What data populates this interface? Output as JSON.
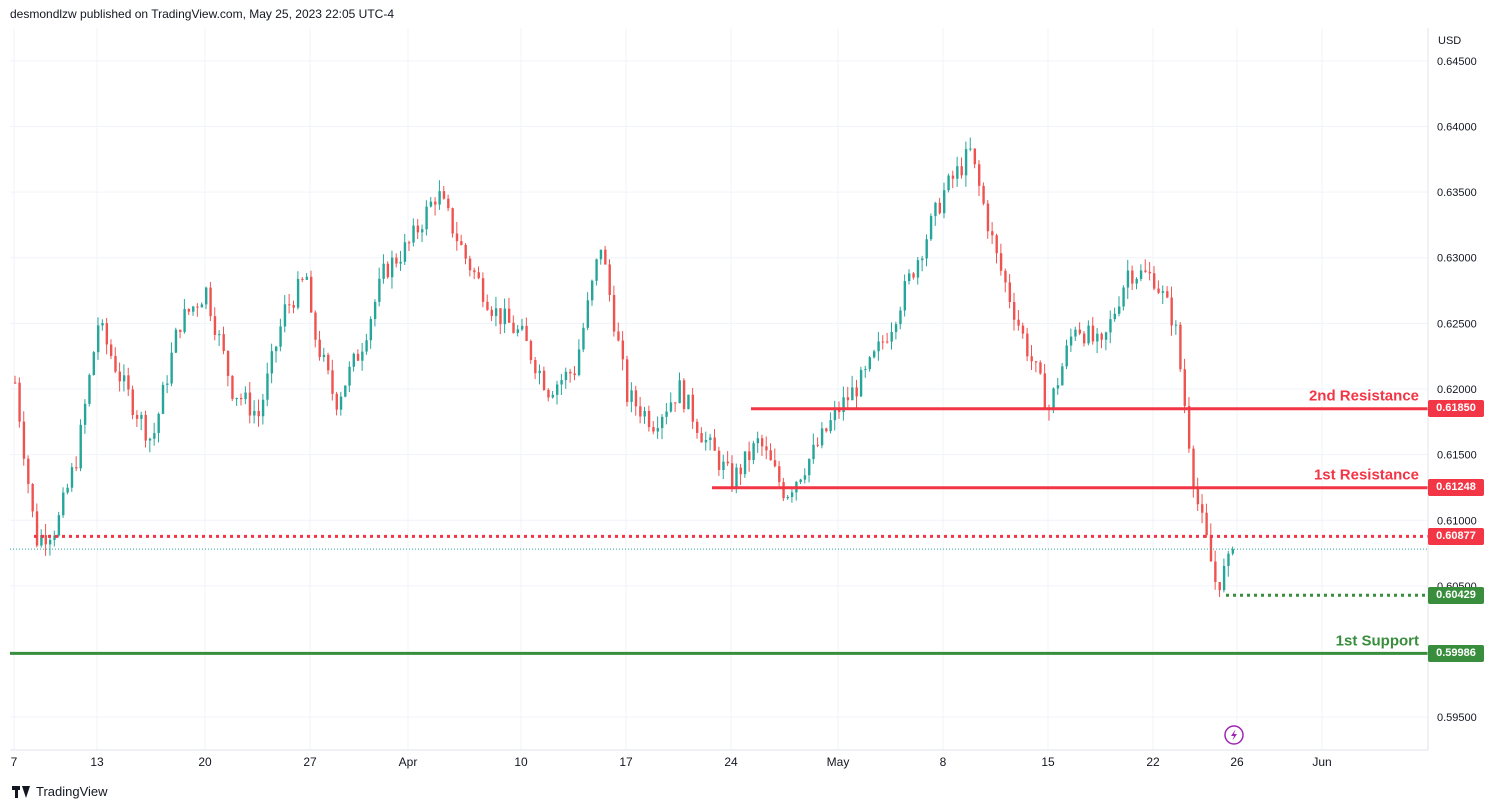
{
  "header": {
    "publisher_line": "desmondlzw published on TradingView.com, May 25, 2023 22:05 UTC-4"
  },
  "footer": {
    "brand": "TradingView",
    "logo_icon": "tradingview-logo-icon"
  },
  "colors": {
    "up": "#26a69a",
    "down": "#ef5350",
    "resistance": "#f23645",
    "support": "#388e3c",
    "grid": "#f0f3fa",
    "axis_text": "#131722"
  },
  "chart_data": {
    "type": "candlestick",
    "currency": "USD",
    "ylim": [
      0.5925,
      0.6475
    ],
    "y_ticks": [
      "0.64500",
      "0.64000",
      "0.63500",
      "0.63000",
      "0.62500",
      "0.62000",
      "0.61500",
      "0.61000",
      "0.60500",
      "0.59500"
    ],
    "x_ticks": [
      "7",
      "13",
      "20",
      "27",
      "Apr",
      "10",
      "17",
      "24",
      "May",
      "8",
      "15",
      "22",
      "26",
      "Jun"
    ],
    "levels": [
      {
        "label": "2nd Resistance",
        "value": 0.6185,
        "tag": "0.61850",
        "kind": "resistance"
      },
      {
        "label": "1st Resistance",
        "value": 0.61248,
        "tag": "0.61248",
        "kind": "resistance"
      },
      {
        "label": "1st Support",
        "value": 0.59986,
        "tag": "0.59986",
        "kind": "support"
      }
    ],
    "dotted_levels": [
      {
        "value": 0.60877,
        "tag": "0.60877",
        "kind": "resistance"
      },
      {
        "value": 0.60429,
        "tag": "0.60429",
        "kind": "support"
      }
    ],
    "current_price": 0.6078,
    "series": [
      {
        "start": "Mar 7",
        "end": "Mar 13",
        "anchors": [
          0.6205,
          0.6085,
          0.6095,
          0.615,
          0.625
        ]
      },
      {
        "start": "Mar 13",
        "end": "Mar 20",
        "anchors": [
          0.625,
          0.62,
          0.616,
          0.625,
          0.6275
        ]
      },
      {
        "start": "Mar 20",
        "end": "Mar 27",
        "anchors": [
          0.6275,
          0.62,
          0.618,
          0.626,
          0.629
        ]
      },
      {
        "start": "Mar 27",
        "end": "Apr 3",
        "anchors": [
          0.625,
          0.619,
          0.623,
          0.629,
          0.631
        ]
      },
      {
        "start": "Apr 3",
        "end": "Apr 10",
        "anchors": [
          0.631,
          0.635,
          0.63,
          0.626,
          0.624
        ]
      },
      {
        "start": "Apr 10",
        "end": "Apr 17",
        "anchors": [
          0.624,
          0.62,
          0.6215,
          0.631,
          0.6195
        ]
      },
      {
        "start": "Apr 17",
        "end": "Apr 24",
        "anchors": [
          0.6195,
          0.6175,
          0.62,
          0.616,
          0.613
        ]
      },
      {
        "start": "Apr 24",
        "end": "May 1",
        "anchors": [
          0.613,
          0.616,
          0.612,
          0.615,
          0.6185
        ]
      },
      {
        "start": "May 1",
        "end": "May 8",
        "anchors": [
          0.6185,
          0.621,
          0.625,
          0.63,
          0.635
        ]
      },
      {
        "start": "May 8",
        "end": "May 15",
        "anchors": [
          0.635,
          0.638,
          0.63,
          0.624,
          0.6185
        ]
      },
      {
        "start": "May 15",
        "end": "May 22",
        "anchors": [
          0.6185,
          0.625,
          0.623,
          0.629,
          0.6285
        ]
      },
      {
        "start": "May 22",
        "end": "May 26",
        "anchors": [
          0.6285,
          0.625,
          0.612,
          0.605,
          0.6078
        ]
      }
    ]
  }
}
